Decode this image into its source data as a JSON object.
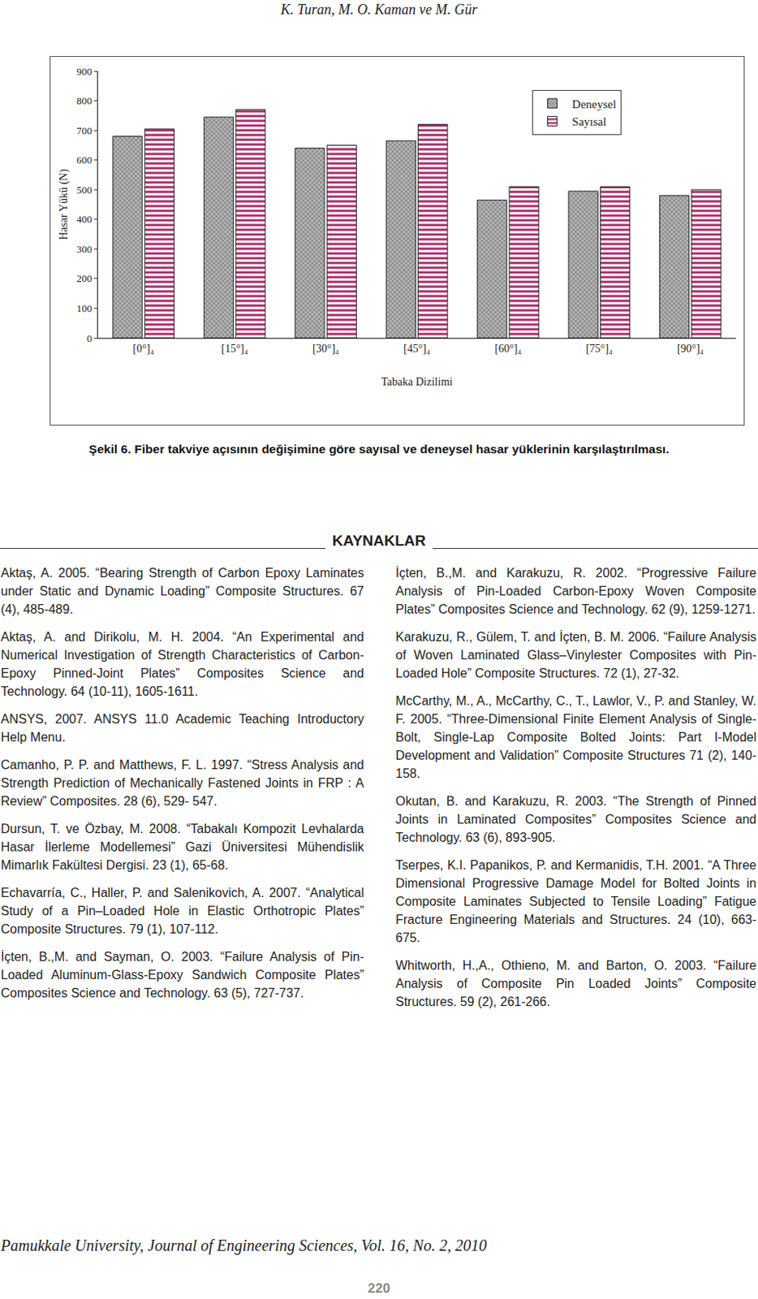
{
  "header": "K. Turan, M. O. Kaman ve M. Gür",
  "chart_data": {
    "type": "bar",
    "x_label": "Tabaka Dizilimi",
    "y_label": "Hasar Yükü (N)",
    "categories": [
      "[0°]₄",
      "[15°]₄",
      "[30°]₄",
      "[45°]₄",
      "[60°]₄",
      "[75°]₄",
      "[90°]₄"
    ],
    "series": [
      {
        "name": "Deneysel",
        "color": "#7a7a7a",
        "values": [
          680,
          745,
          640,
          665,
          465,
          495,
          480
        ]
      },
      {
        "name": "Sayısal",
        "color": "#a8306c",
        "values": [
          705,
          770,
          650,
          720,
          510,
          510,
          500
        ]
      }
    ],
    "ylim": [
      0,
      900
    ],
    "yticks": [
      0,
      100,
      200,
      300,
      400,
      500,
      600,
      700,
      800,
      900
    ],
    "grid": false,
    "legend": "upper right"
  },
  "caption": "Şekil 6. Fiber takviye açısının değişimine göre sayısal ve deneysel hasar yüklerinin karşılaştırılması.",
  "references": {
    "heading": "KAYNAKLAR",
    "left": [
      "Aktaş, A. 2005. “Bearing Strength of Carbon Epoxy Laminates under Static and Dynamic Loading” Composite Structures. 67 (4), 485-489.",
      "Aktaş, A. and Dirikolu, M. H. 2004. “An Experimental and Numerical Investigation of Strength Characteristics of Carbon-Epoxy Pinned-Joint Plates” Composites Science and Technology. 64 (10-11), 1605-1611.",
      "ANSYS, 2007. ANSYS 11.0 Academic Teaching Introductory Help Menu.",
      "Camanho, P. P. and Matthews, F. L. 1997. “Stress Analysis and Strength Prediction of Mechanically Fastened Joints in FRP : A Review” Composites. 28 (6), 529- 547.",
      "Dursun, T. ve Özbay, M. 2008. “Tabakalı Kompozit Levhalarda Hasar İlerleme Modellemesi” Gazi Üniversitesi Mühendislik Mimarlık Fakültesi Dergisi. 23 (1), 65-68.",
      "Echavarría, C., Haller, P. and Salenikovich, A. 2007. “Analytical Study of a Pin–Loaded Hole in Elastic Orthotropic Plates” Composite Structures. 79 (1), 107-112.",
      "İçten, B.,M. and Sayman, O. 2003. “Failure Analysis of Pin-Loaded Aluminum-Glass-Epoxy Sandwich Composite Plates” Composites Science and Technology. 63 (5), 727-737."
    ],
    "right": [
      "İçten, B.,M. and Karakuzu, R. 2002. “Progressive Failure Analysis of Pin-Loaded Carbon-Epoxy Woven Composite Plates” Composites Science and Technology. 62 (9), 1259-1271.",
      "Karakuzu, R., Gülem, T. and İçten, B. M. 2006. “Failure Analysis of Woven Laminated Glass–Vinylester Composites with Pin-Loaded Hole” Composite Structures. 72 (1), 27-32.",
      "McCarthy, M., A., McCarthy, C., T., Lawlor, V., P. and Stanley, W. F. 2005. “Three-Dimensional Finite Element Analysis of Single-Bolt, Single-Lap Composite Bolted Joints: Part I-Model Development and Validation” Composite Structures 71 (2), 140-158.",
      "Okutan, B. and Karakuzu, R. 2003. “The Strength of Pinned Joints in Laminated Composites” Composites Science and Technology. 63 (6), 893-905.",
      "Tserpes, K.I. Papanikos, P. and Kermanidis, T.H. 2001. “A Three Dimensional Progressive Damage Model for Bolted Joints in Composite Laminates Subjected to Tensile Loading” Fatigue Fracture Engineering Materials and Structures. 24 (10), 663- 675.",
      "Whitworth, H.,A., Othieno, M. and Barton, O. 2003. “Failure Analysis of Composite Pin Loaded Joints” Composite Structures. 59 (2), 261-266."
    ]
  },
  "footer": {
    "journal": "Pamukkale University, Journal of Engineering Sciences, Vol. 16, No. 2, 2010",
    "page": "220"
  }
}
